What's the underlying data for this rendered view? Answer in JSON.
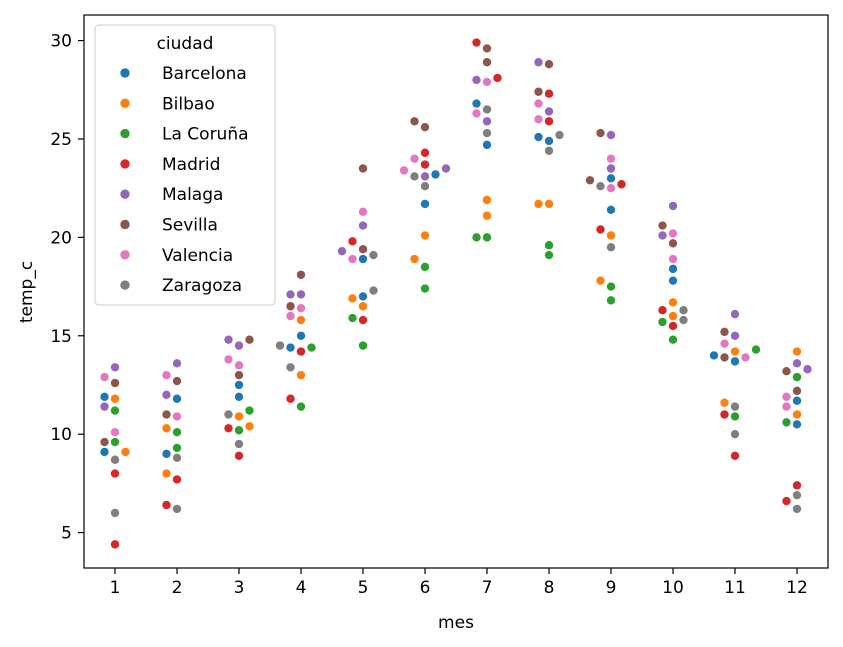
{
  "chart_data": {
    "type": "scatter",
    "subtype": "swarm",
    "xlabel": "mes",
    "ylabel": "temp_c",
    "categories": [
      "1",
      "2",
      "3",
      "4",
      "5",
      "6",
      "7",
      "8",
      "9",
      "10",
      "11",
      "12"
    ],
    "ylim": [
      3.2,
      31.3
    ],
    "yticks": [
      5,
      10,
      15,
      20,
      25,
      30
    ],
    "grid": false,
    "legend": {
      "title": "ciudad",
      "position": "top-left"
    },
    "series": [
      {
        "name": "Barcelona",
        "color": "#1f77b4",
        "values": [
          11.9,
          11.8,
          12.5,
          15.0,
          18.9,
          21.7,
          26.8,
          25.1,
          23.0,
          18.4,
          13.7,
          11.7
        ],
        "extra_points": [
          [
            1,
            9.1
          ],
          [
            2,
            9.0
          ],
          [
            3,
            11.9
          ],
          [
            4,
            14.4
          ],
          [
            5,
            17.0
          ],
          [
            6,
            23.2
          ],
          [
            7,
            24.7
          ],
          [
            8,
            24.9
          ],
          [
            9,
            21.4
          ],
          [
            10,
            17.8
          ],
          [
            11,
            14.0
          ],
          [
            12,
            10.5
          ]
        ]
      },
      {
        "name": "Bilbao",
        "color": "#ff7f0e",
        "values": [
          11.8,
          10.3,
          10.9,
          15.8,
          16.9,
          20.1,
          21.9,
          21.7,
          20.1,
          16.7,
          11.6,
          14.2
        ],
        "extra_points": [
          [
            1,
            9.1
          ],
          [
            2,
            8.0
          ],
          [
            3,
            10.4
          ],
          [
            4,
            13.0
          ],
          [
            5,
            16.5
          ],
          [
            6,
            18.9
          ],
          [
            7,
            21.1
          ],
          [
            8,
            21.7
          ],
          [
            9,
            17.8
          ],
          [
            10,
            16.0
          ],
          [
            11,
            14.2
          ],
          [
            12,
            11.0
          ]
        ]
      },
      {
        "name": "La Coruña",
        "color": "#2ca02c",
        "values": [
          11.2,
          10.1,
          11.2,
          14.4,
          15.9,
          18.5,
          20.0,
          19.6,
          17.5,
          15.7,
          14.3,
          12.9
        ],
        "extra_points": [
          [
            1,
            9.6
          ],
          [
            2,
            9.3
          ],
          [
            3,
            10.2
          ],
          [
            4,
            11.4
          ],
          [
            5,
            14.5
          ],
          [
            6,
            17.4
          ],
          [
            7,
            20.0
          ],
          [
            8,
            19.1
          ],
          [
            9,
            16.8
          ],
          [
            10,
            14.8
          ],
          [
            11,
            10.9
          ],
          [
            12,
            10.6
          ]
        ]
      },
      {
        "name": "Madrid",
        "color": "#d62728",
        "values": [
          8.0,
          7.7,
          10.3,
          14.2,
          19.8,
          24.3,
          29.9,
          27.3,
          22.7,
          16.3,
          11.0,
          7.4
        ],
        "extra_points": [
          [
            1,
            4.4
          ],
          [
            2,
            6.4
          ],
          [
            3,
            8.9
          ],
          [
            4,
            11.8
          ],
          [
            5,
            15.8
          ],
          [
            6,
            23.7
          ],
          [
            7,
            28.1
          ],
          [
            8,
            25.9
          ],
          [
            9,
            20.4
          ],
          [
            10,
            15.5
          ],
          [
            11,
            8.9
          ],
          [
            12,
            6.6
          ]
        ]
      },
      {
        "name": "Malaga",
        "color": "#9467bd",
        "values": [
          13.4,
          13.6,
          14.8,
          17.1,
          20.6,
          23.5,
          28.0,
          28.9,
          25.2,
          21.6,
          16.1,
          13.6
        ],
        "extra_points": [
          [
            1,
            11.4
          ],
          [
            2,
            12.0
          ],
          [
            3,
            14.5
          ],
          [
            4,
            17.1
          ],
          [
            5,
            19.3
          ],
          [
            6,
            23.1
          ],
          [
            7,
            25.9
          ],
          [
            8,
            26.4
          ],
          [
            9,
            23.5
          ],
          [
            10,
            20.1
          ],
          [
            11,
            15.0
          ],
          [
            12,
            13.3
          ]
        ]
      },
      {
        "name": "Sevilla",
        "color": "#8c564b",
        "values": [
          12.6,
          12.7,
          14.8,
          18.1,
          23.5,
          25.9,
          29.6,
          28.8,
          25.3,
          20.6,
          15.2,
          13.2
        ],
        "extra_points": [
          [
            1,
            9.6
          ],
          [
            2,
            11.0
          ],
          [
            3,
            13.0
          ],
          [
            4,
            16.5
          ],
          [
            5,
            19.4
          ],
          [
            6,
            25.6
          ],
          [
            7,
            28.9
          ],
          [
            8,
            27.4
          ],
          [
            9,
            22.9
          ],
          [
            10,
            19.7
          ],
          [
            11,
            13.9
          ],
          [
            12,
            12.2
          ]
        ]
      },
      {
        "name": "Valencia",
        "color": "#e377c2",
        "values": [
          12.9,
          13.0,
          13.8,
          16.0,
          21.3,
          24.0,
          27.9,
          26.8,
          24.0,
          20.2,
          14.6,
          11.9
        ],
        "extra_points": [
          [
            1,
            10.1
          ],
          [
            2,
            10.9
          ],
          [
            3,
            13.5
          ],
          [
            4,
            16.4
          ],
          [
            5,
            18.9
          ],
          [
            6,
            23.4
          ],
          [
            7,
            26.3
          ],
          [
            8,
            26.0
          ],
          [
            9,
            22.5
          ],
          [
            10,
            18.9
          ],
          [
            11,
            13.9
          ],
          [
            12,
            11.4
          ]
        ]
      },
      {
        "name": "Zaragoza",
        "color": "#7f7f7f",
        "values": [
          8.7,
          8.8,
          11.0,
          14.5,
          19.1,
          22.6,
          26.5,
          25.2,
          22.6,
          16.3,
          11.4,
          6.9
        ],
        "extra_points": [
          [
            1,
            6.0
          ],
          [
            2,
            6.2
          ],
          [
            3,
            9.5
          ],
          [
            4,
            13.4
          ],
          [
            5,
            17.3
          ],
          [
            6,
            23.1
          ],
          [
            7,
            25.3
          ],
          [
            8,
            24.4
          ],
          [
            9,
            19.5
          ],
          [
            10,
            15.8
          ],
          [
            11,
            10.0
          ],
          [
            12,
            6.2
          ]
        ]
      }
    ]
  }
}
